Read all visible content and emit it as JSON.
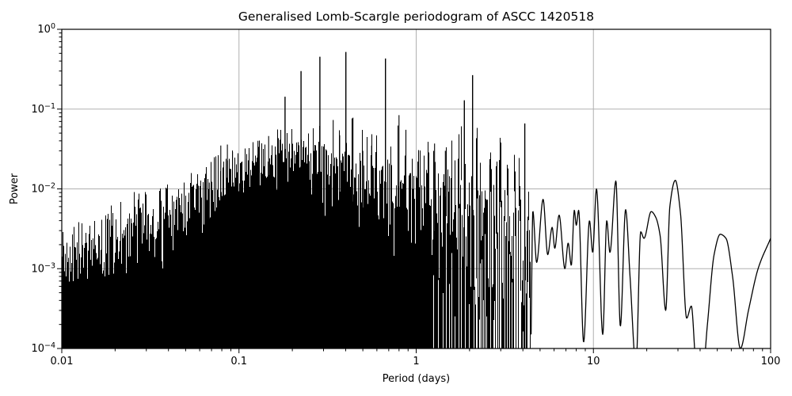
{
  "chart_data": {
    "type": "line",
    "title": "Generalised Lomb-Scargle periodogram of ASCC 1420518",
    "xlabel": "Period (days)",
    "ylabel": "Power",
    "x_scale": "log",
    "y_scale": "log",
    "xlim": [
      0.01,
      100
    ],
    "ylim": [
      0.0001,
      1
    ],
    "grid": {
      "show": true,
      "color": "#b0b0b0",
      "which": "major"
    },
    "line_color": "#000000",
    "background_color": "#ffffff",
    "x_ticks": [
      {
        "value": 0.01,
        "label": "0.01"
      },
      {
        "value": 0.1,
        "label": "0.1"
      },
      {
        "value": 1,
        "label": "1"
      },
      {
        "value": 10,
        "label": "10"
      },
      {
        "value": 100,
        "label": "100"
      }
    ],
    "y_ticks": [
      {
        "value": 1,
        "label": "10^0",
        "exp": 0
      },
      {
        "value": 0.1,
        "label": "10^-1",
        "exp": -1
      },
      {
        "value": 0.01,
        "label": "10^-2",
        "exp": -2
      },
      {
        "value": 0.001,
        "label": "10^-3",
        "exp": -3
      },
      {
        "value": 0.0001,
        "label": "10^-4",
        "exp": -4
      }
    ],
    "major_peaks": [
      {
        "period": 0.182,
        "power": 0.143
      },
      {
        "period": 0.224,
        "power": 0.3
      },
      {
        "period": 0.286,
        "power": 0.453
      },
      {
        "period": 0.401,
        "power": 0.52
      },
      {
        "period": 0.671,
        "power": 0.43
      },
      {
        "period": 1.87,
        "power": 0.129
      },
      {
        "period": 2.08,
        "power": 0.266
      },
      {
        "period": 4.1,
        "power": 0.066
      }
    ],
    "secondary_peaks": [
      {
        "period": 0.068,
        "power": 0.012
      },
      {
        "period": 0.074,
        "power": 0.024
      },
      {
        "period": 0.079,
        "power": 0.035
      },
      {
        "period": 0.086,
        "power": 0.036
      },
      {
        "period": 0.092,
        "power": 0.029
      },
      {
        "period": 0.104,
        "power": 0.022
      },
      {
        "period": 0.114,
        "power": 0.028
      },
      {
        "period": 0.128,
        "power": 0.04
      },
      {
        "period": 0.147,
        "power": 0.046
      },
      {
        "period": 0.165,
        "power": 0.031
      },
      {
        "period": 0.34,
        "power": 0.073
      },
      {
        "period": 0.37,
        "power": 0.047
      },
      {
        "period": 0.44,
        "power": 0.078
      },
      {
        "period": 0.5,
        "power": 0.03
      },
      {
        "period": 0.56,
        "power": 0.035
      },
      {
        "period": 0.8,
        "power": 0.084
      },
      {
        "period": 0.875,
        "power": 0.055
      },
      {
        "period": 1.27,
        "power": 0.037
      },
      {
        "period": 1.46,
        "power": 0.03
      },
      {
        "period": 2.6,
        "power": 0.02
      },
      {
        "period": 2.95,
        "power": 0.023
      },
      {
        "period": 3.3,
        "power": 0.018
      }
    ],
    "noise_envelope": [
      [
        0.01,
        0.002
      ],
      [
        0.02,
        0.0033
      ],
      [
        0.04,
        0.0065
      ],
      [
        0.07,
        0.013
      ],
      [
        0.1,
        0.024
      ],
      [
        0.15,
        0.034
      ],
      [
        0.25,
        0.036
      ],
      [
        0.4,
        0.034
      ],
      [
        0.7,
        0.028
      ],
      [
        1.0,
        0.026
      ],
      [
        1.6,
        0.03
      ],
      [
        2.5,
        0.033
      ],
      [
        3.5,
        0.028
      ],
      [
        4.45,
        0.008
      ]
    ],
    "smooth_curve": [
      [
        4.45,
        0.00015
      ],
      [
        4.55,
        0.0053
      ],
      [
        4.78,
        0.0012
      ],
      [
        5.2,
        0.0074
      ],
      [
        5.52,
        0.0015
      ],
      [
        5.85,
        0.0033
      ],
      [
        6.05,
        0.0018
      ],
      [
        6.4,
        0.0047
      ],
      [
        6.9,
        0.001
      ],
      [
        7.2,
        0.0021
      ],
      [
        7.5,
        0.0011
      ],
      [
        7.8,
        0.0054
      ],
      [
        8.0,
        0.0035
      ],
      [
        8.25,
        0.0054
      ],
      [
        8.8,
        0.00012
      ],
      [
        9.5,
        0.004
      ],
      [
        9.9,
        0.0016
      ],
      [
        10.4,
        0.01
      ],
      [
        11.3,
        0.00015
      ],
      [
        11.9,
        0.004
      ],
      [
        12.4,
        0.0016
      ],
      [
        13.4,
        0.0126
      ],
      [
        14.2,
        0.00019
      ],
      [
        15.2,
        0.0055
      ],
      [
        16.1,
        0.0008
      ],
      [
        17.4,
        6e-05
      ],
      [
        18.5,
        0.0029
      ],
      [
        19.3,
        0.0024
      ],
      [
        21.2,
        0.0052
      ],
      [
        22.5,
        0.0044
      ],
      [
        23.8,
        0.0026
      ],
      [
        25.6,
        0.0003
      ],
      [
        27.0,
        0.006
      ],
      [
        29.0,
        0.0128
      ],
      [
        31.0,
        0.005
      ],
      [
        33.6,
        0.00024
      ],
      [
        35.7,
        0.00034
      ],
      [
        38.0,
        6e-05
      ],
      [
        41.0,
        4e-05
      ],
      [
        44.0,
        0.0002
      ],
      [
        48.0,
        0.0015
      ],
      [
        52.0,
        0.0027
      ],
      [
        56.0,
        0.0024
      ],
      [
        61.0,
        0.0008
      ],
      [
        67.5,
        0.0001
      ],
      [
        75.0,
        0.0003
      ],
      [
        85.0,
        0.001
      ],
      [
        100.0,
        0.0024
      ]
    ],
    "noise_texture": {
      "seed": 7,
      "baseline_days": [
        54,
        13.5,
        3.73
      ],
      "weights": [
        0.52,
        0.3,
        0.18
      ],
      "phases": [
        1.3,
        4.1,
        0.77
      ],
      "sharpness": 1.5,
      "column_jitter_dex": 0.28,
      "sample_jitter_dex": 0.18,
      "smooth_region_start_period": 4.45
    }
  }
}
